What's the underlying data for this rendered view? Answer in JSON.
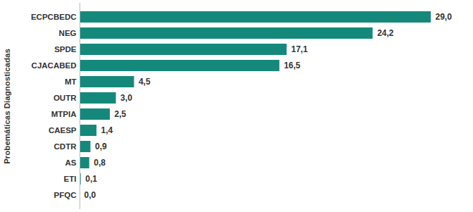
{
  "chart_data": {
    "type": "bar",
    "orientation": "horizontal",
    "y_label": "Probemáticas Diagnosticadas",
    "categories": [
      "ECPCBEDC",
      "NEG",
      "SPDE",
      "CJACABED",
      "MT",
      "OUTR",
      "MTPIA",
      "CAESP",
      "CDTR",
      "AS",
      "ETI",
      "PFQC"
    ],
    "values": [
      29.0,
      24.2,
      17.1,
      16.5,
      4.5,
      3.0,
      2.5,
      1.4,
      0.9,
      0.8,
      0.1,
      0.0
    ],
    "value_labels": [
      "29,0",
      "24,2",
      "17,1",
      "16,5",
      "4,5",
      "3,0",
      "2,5",
      "1,4",
      "0,9",
      "0,8",
      "0,1",
      "0,0"
    ],
    "data_labels": true,
    "tick_labels": "y",
    "grid": false,
    "color": "#14897b"
  }
}
